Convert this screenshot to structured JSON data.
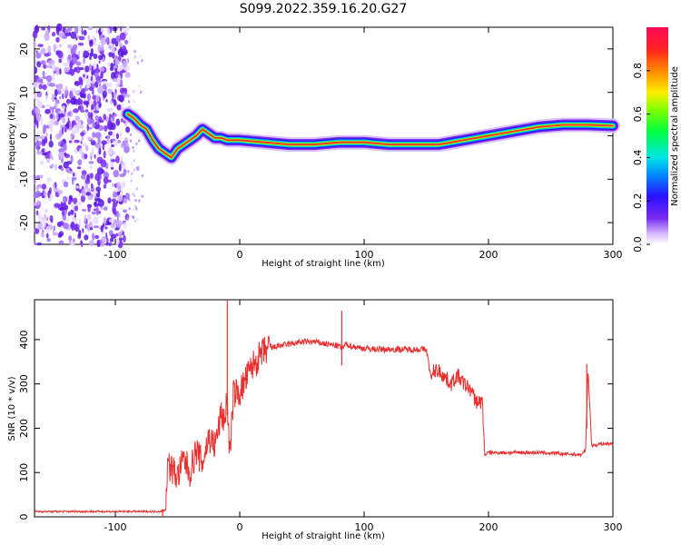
{
  "title": "S099.2022.359.16.20.G27",
  "colors": {
    "snr_line": "#e8302f",
    "ridge_core": "#e83030",
    "speckle": "#7a2cf0"
  },
  "chart_data": [
    {
      "type": "heatmap",
      "title": "S099.2022.359.16.20.G27",
      "xlabel": "Height of straight line (km)",
      "ylabel": "Frequency (Hz)",
      "xlim": [
        -165,
        300
      ],
      "ylim": [
        -25,
        25
      ],
      "x_ticks": [
        -100,
        0,
        100,
        200,
        300
      ],
      "y_ticks": [
        -20,
        -10,
        0,
        10,
        20
      ],
      "colorbar": {
        "label": "Normalized spectral amplitude",
        "range": [
          0.0,
          1.0
        ],
        "ticks": [
          0.0,
          0.2,
          0.4,
          0.6,
          0.8
        ],
        "colormap": "gist_rainbow-like (white, purple, blue, cyan, green, yellow, red)"
      },
      "ridge": {
        "x": [
          -90,
          -85,
          -80,
          -75,
          -70,
          -65,
          -60,
          -55,
          -50,
          -45,
          -40,
          -35,
          -30,
          -25,
          -20,
          -15,
          -10,
          -5,
          0,
          20,
          40,
          60,
          80,
          100,
          120,
          140,
          160,
          170,
          180,
          200,
          220,
          240,
          260,
          280,
          300
        ],
        "y": [
          5,
          4,
          2.5,
          1.5,
          -1,
          -3,
          -4,
          -5,
          -3,
          -2,
          -1,
          0,
          1.5,
          0.5,
          -0.5,
          -0.5,
          -1,
          -1,
          -1,
          -1.5,
          -2,
          -2,
          -1.5,
          -1.5,
          -2,
          -2,
          -2,
          -1.5,
          -1,
          0,
          1,
          2,
          2.5,
          2.5,
          2.3
        ]
      },
      "noise_region_x": [
        -165,
        -90
      ],
      "grid": false
    },
    {
      "type": "line",
      "xlabel": "Height of straight line (km)",
      "ylabel": "SNR (10 * v/v)",
      "xlim": [
        -165,
        300
      ],
      "ylim": [
        0,
        490
      ],
      "x_ticks": [
        -100,
        0,
        100,
        200,
        300
      ],
      "y_ticks": [
        0,
        100,
        200,
        300,
        400
      ],
      "series": [
        {
          "x": [
            -165,
            -140,
            -120,
            -100,
            -80,
            -65,
            -60,
            -58,
            -55,
            -50,
            -45,
            -40,
            -35,
            -30,
            -25,
            -20,
            -15,
            -12,
            -10,
            -8,
            -5,
            0,
            10,
            20,
            30,
            40,
            50,
            60,
            70,
            80,
            83,
            85,
            90,
            100,
            110,
            120,
            130,
            140,
            150,
            154,
            156,
            160,
            170,
            175,
            180,
            185,
            190,
            195,
            197,
            200,
            220,
            240,
            260,
            275,
            278,
            280,
            283,
            290,
            300
          ],
          "y": [
            12,
            12,
            12,
            12,
            12,
            12,
            15,
            120,
            110,
            90,
            130,
            100,
            150,
            120,
            180,
            160,
            230,
            220,
            270,
            130,
            280,
            280,
            340,
            375,
            385,
            390,
            395,
            395,
            390,
            385,
            380,
            390,
            385,
            380,
            378,
            378,
            378,
            378,
            378,
            310,
            330,
            330,
            300,
            320,
            300,
            290,
            260,
            260,
            140,
            145,
            145,
            145,
            142,
            140,
            150,
            330,
            160,
            165,
            165
          ]
        }
      ],
      "spikes": [
        {
          "x": -62,
          "y": 15
        },
        {
          "x": -10,
          "y": 490
        },
        {
          "x": 82,
          "y": 465
        },
        {
          "x": 279,
          "y": 345
        }
      ],
      "grid": false
    }
  ]
}
